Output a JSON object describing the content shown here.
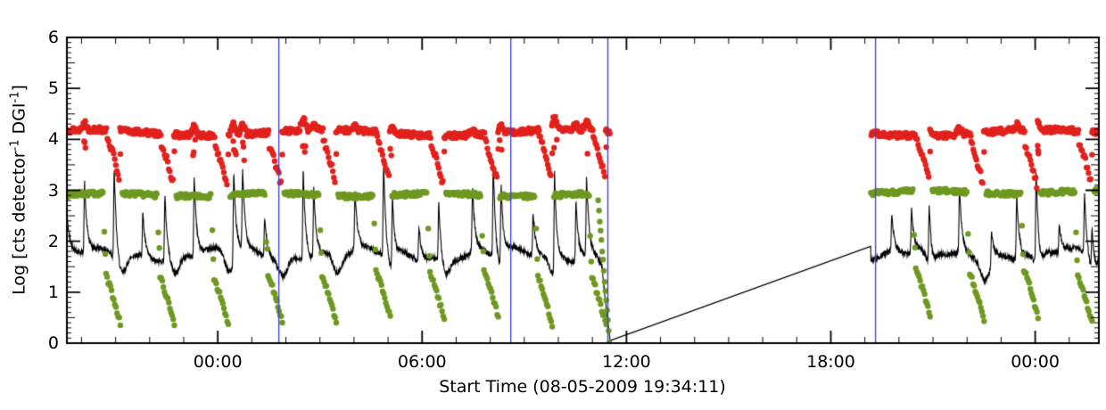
{
  "chart_data": {
    "type": "line+scatter",
    "title": "",
    "x_axis": {
      "label": "Start Time (08-05-2009 19:34:11)",
      "tick_labels": [
        "00:00",
        "06:00",
        "12:00",
        "18:00",
        "00:00"
      ],
      "tick_times_h": [
        4.43,
        10.43,
        16.43,
        22.43,
        28.43
      ],
      "minor_tick_step_h": 1,
      "range_h": [
        0,
        30.3
      ]
    },
    "y_axis": {
      "label_parts": [
        "Log [cts detector",
        "-1",
        " DGI",
        "-1",
        "]"
      ],
      "tick_labels": [
        "0",
        "1",
        "2",
        "3",
        "4",
        "5",
        "6"
      ],
      "tick_values": [
        0,
        1,
        2,
        3,
        4,
        5,
        6
      ],
      "minor_tick_step": 0.1,
      "range": [
        0,
        6
      ]
    },
    "gap": {
      "start_h": 15.95,
      "end_h": 23.6,
      "bridge_start_value": 0.05,
      "bridge_end_value": 1.9
    },
    "vertical_lines": {
      "color": "#4444cc",
      "times_h": [
        6.21,
        13.02,
        15.87,
        23.73
      ]
    },
    "orbit": {
      "first_dip_h": 1.15,
      "period_h": 1.585
    },
    "series": {
      "red_points": {
        "color": "#e2211c",
        "marker_radius": 3.2,
        "band_level": 4.13,
        "band_noise": 0.055,
        "wiggle_amp": 0.06,
        "dip_min": 3.2,
        "dip_duration_h": 0.4,
        "sample_step_h": 0.02
      },
      "green_points": {
        "color": "#6e9920",
        "marker_radius": 3.2,
        "band_level": 2.91,
        "band_noise": 0.045,
        "post_gap_offset": 0.05,
        "dip_top": 1.38,
        "dip_min": 0.45,
        "dip_duration_h": 0.42,
        "sample_step_h": 0.022,
        "pre_gap_descent": {
          "start_h": 15.6,
          "end_h": 15.93,
          "from": 2.8,
          "to": 0.03
        }
      },
      "black_line": {
        "color": "#000000",
        "line_width": 1.1,
        "baseline": 1.74,
        "noise": 0.11,
        "sample_step_h": 0.008,
        "spikes": [
          [
            0.0,
            2.45
          ],
          [
            0.52,
            3.1
          ],
          [
            1.39,
            3.5
          ],
          [
            2.23,
            2.6
          ],
          [
            2.88,
            3.0
          ],
          [
            3.74,
            3.3
          ],
          [
            4.9,
            3.55
          ],
          [
            5.16,
            3.3
          ],
          [
            5.81,
            2.5
          ],
          [
            6.94,
            3.5
          ],
          [
            7.25,
            3.1
          ],
          [
            8.46,
            2.9
          ],
          [
            9.3,
            3.6
          ],
          [
            9.56,
            3.2
          ],
          [
            10.34,
            2.4
          ],
          [
            10.92,
            2.9
          ],
          [
            11.91,
            3.0
          ],
          [
            12.52,
            3.65
          ],
          [
            12.75,
            3.3
          ],
          [
            13.69,
            2.6
          ],
          [
            14.32,
            3.7
          ],
          [
            14.95,
            2.9
          ],
          [
            15.26,
            3.3
          ],
          [
            24.22,
            2.5
          ],
          [
            24.8,
            2.6
          ],
          [
            25.32,
            2.9
          ],
          [
            26.21,
            3.0
          ],
          [
            27.15,
            2.4
          ],
          [
            27.89,
            3.0
          ],
          [
            28.46,
            3.6
          ],
          [
            29.14,
            2.3
          ],
          [
            29.88,
            2.9
          ],
          [
            30.1,
            2.6
          ]
        ]
      }
    }
  }
}
